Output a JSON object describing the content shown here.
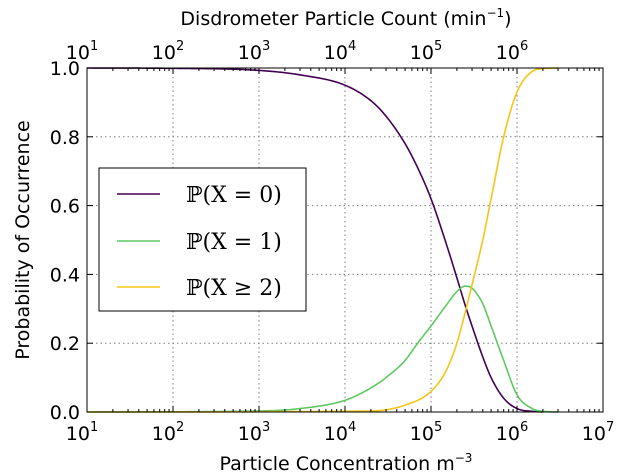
{
  "chart_data": {
    "type": "line",
    "ylabel": "Probability of Occurrence",
    "xlabel_bottom": {
      "text": "Particle Concentration m",
      "sup": "−3"
    },
    "xlabel_top": {
      "pre": "Disdrometer Particle Count (min",
      "sup": "−1",
      "post": ")"
    },
    "x_scale": "log",
    "xlim": [
      10,
      10000000
    ],
    "ylim": [
      0.0,
      1.0
    ],
    "grid": true,
    "legend_position": "center-left",
    "yticks": [
      {
        "value": 0.0,
        "label": "0.0"
      },
      {
        "value": 0.2,
        "label": "0.2"
      },
      {
        "value": 0.4,
        "label": "0.4"
      },
      {
        "value": 0.6,
        "label": "0.6"
      },
      {
        "value": 0.8,
        "label": "0.8"
      },
      {
        "value": 1.0,
        "label": "1.0"
      }
    ],
    "bottom_ticks": [
      {
        "value": 10,
        "base": "10",
        "exp": "1"
      },
      {
        "value": 100,
        "base": "10",
        "exp": "2"
      },
      {
        "value": 1000,
        "base": "10",
        "exp": "3"
      },
      {
        "value": 10000,
        "base": "10",
        "exp": "4"
      },
      {
        "value": 100000,
        "base": "10",
        "exp": "5"
      },
      {
        "value": 1000000,
        "base": "10",
        "exp": "6"
      },
      {
        "value": 10000000,
        "base": "10",
        "exp": "7"
      }
    ],
    "top_ticks": [
      {
        "value": 10,
        "base": "10",
        "exp": "1"
      },
      {
        "value": 100,
        "base": "10",
        "exp": "2"
      },
      {
        "value": 1000,
        "base": "10",
        "exp": "3"
      },
      {
        "value": 10000,
        "base": "10",
        "exp": "4"
      },
      {
        "value": 100000,
        "base": "10",
        "exp": "5"
      },
      {
        "value": 1000000,
        "base": "10",
        "exp": "6"
      }
    ],
    "series": [
      {
        "name": "ℙ(X = 0)",
        "color": "#440154",
        "x": [
          10,
          100,
          1000,
          3000,
          10000,
          20000,
          30000,
          50000,
          70000,
          100000,
          150000,
          200000,
          250000,
          300000,
          400000,
          500000,
          700000,
          1000000,
          1500000,
          2000000
        ],
        "y": [
          1.0,
          0.999,
          0.993,
          0.98,
          0.95,
          0.905,
          0.86,
          0.78,
          0.71,
          0.62,
          0.49,
          0.39,
          0.31,
          0.25,
          0.16,
          0.1,
          0.04,
          0.01,
          0.002,
          0.0
        ]
      },
      {
        "name": "ℙ(X = 1)",
        "color": "#5ec962",
        "x": [
          10,
          1000,
          3000,
          10000,
          20000,
          30000,
          50000,
          70000,
          100000,
          150000,
          200000,
          250000,
          300000,
          350000,
          400000,
          500000,
          700000,
          1000000,
          1500000,
          2000000,
          3000000
        ],
        "y": [
          0.0,
          0.003,
          0.01,
          0.034,
          0.07,
          0.1,
          0.15,
          0.2,
          0.25,
          0.31,
          0.35,
          0.366,
          0.36,
          0.34,
          0.315,
          0.25,
          0.15,
          0.05,
          0.01,
          0.002,
          0.0
        ]
      },
      {
        "name": "ℙ(X ≥ 2)",
        "color": "#f5c518",
        "x": [
          10,
          20000,
          50000,
          100000,
          150000,
          200000,
          250000,
          300000,
          400000,
          500000,
          700000,
          1000000,
          1500000,
          2000000,
          3000000
        ],
        "y": [
          0.0,
          0.003,
          0.02,
          0.06,
          0.12,
          0.2,
          0.29,
          0.37,
          0.5,
          0.62,
          0.8,
          0.93,
          0.99,
          0.998,
          1.0
        ]
      }
    ]
  }
}
